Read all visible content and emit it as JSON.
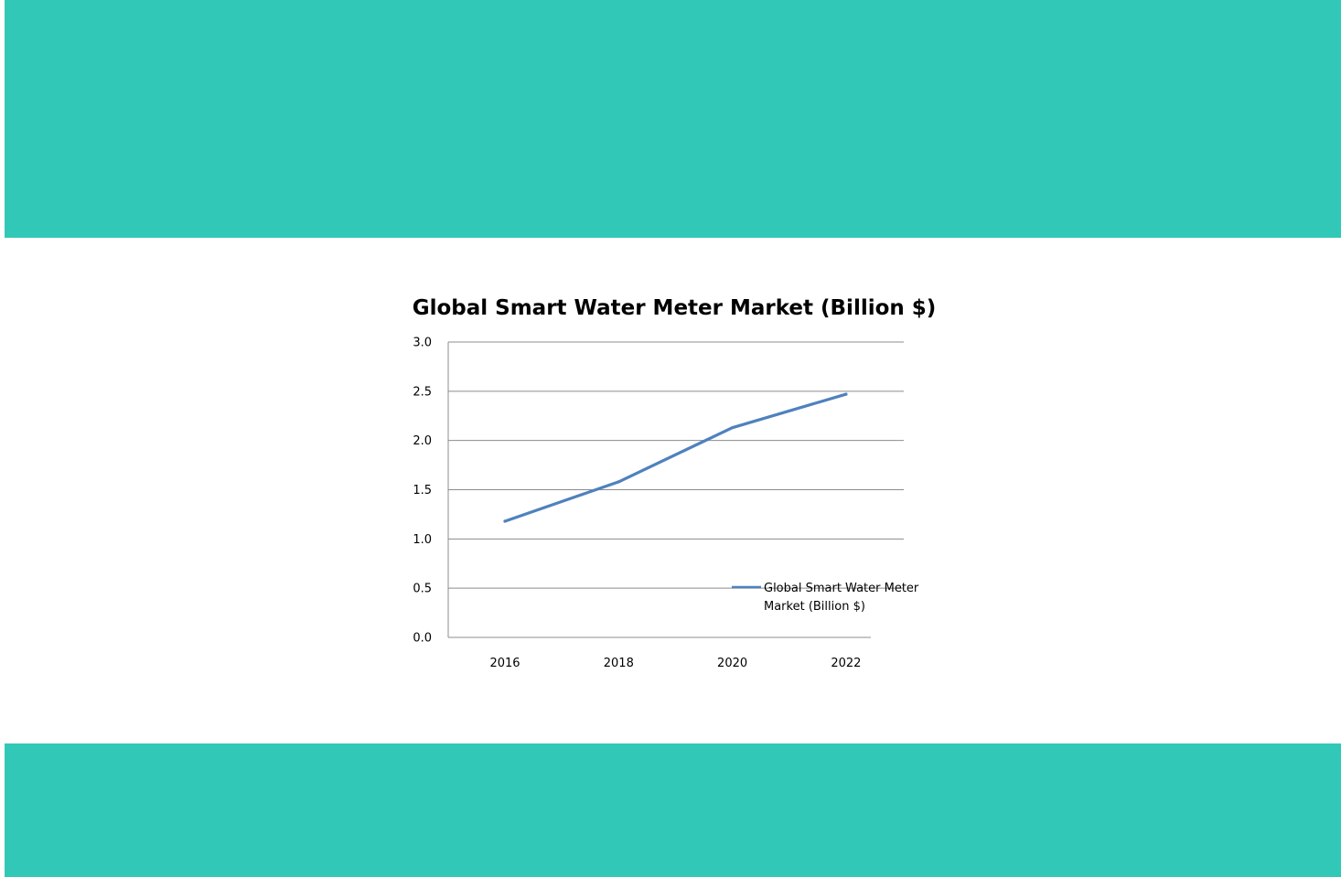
{
  "page": {
    "accent_color": "#31c8b7",
    "background_color": "#ffffff"
  },
  "chart_data": {
    "type": "line",
    "title": "Global Smart Water Meter Market  (Billion $)",
    "xlabel": "",
    "ylabel": "",
    "categories": [
      "2016",
      "2018",
      "2020",
      "2022"
    ],
    "series": [
      {
        "name": "Global Smart Water Meter Market (Billion $)",
        "legend_lines": [
          "Global Smart Water Meter",
          "Market (Billion $)"
        ],
        "values": [
          1.18,
          1.58,
          2.13,
          2.47
        ],
        "color": "#4f81bd"
      }
    ],
    "ylim": [
      0,
      3
    ],
    "yticks": [
      "0.0",
      "0.5",
      "1.0",
      "1.5",
      "2.0",
      "2.5",
      "3.0"
    ],
    "grid": true,
    "legend_position": "bottom-right"
  }
}
